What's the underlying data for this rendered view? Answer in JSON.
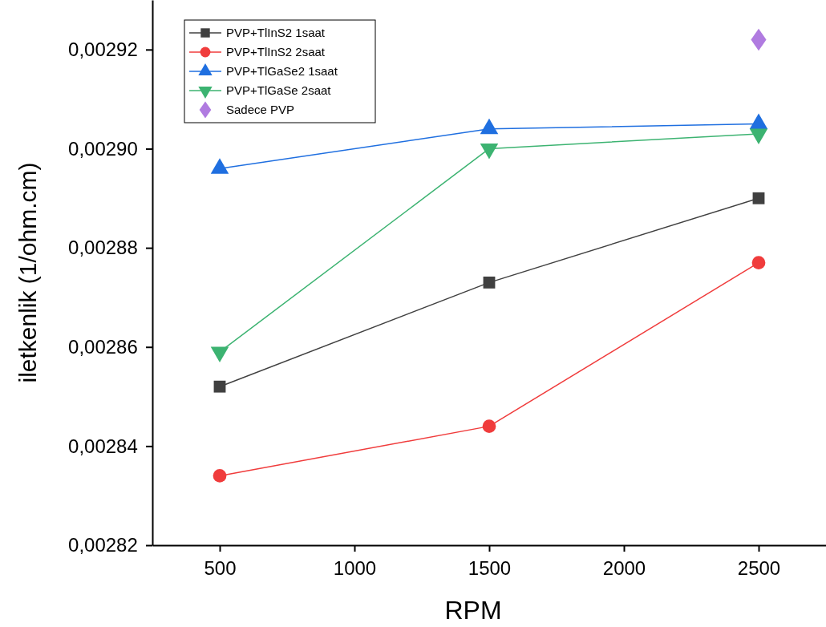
{
  "chart_data": {
    "type": "line",
    "xlabel": "RPM",
    "ylabel": "iletkenlik (1/ohm.cm)",
    "x": [
      500,
      1500,
      2500
    ],
    "xlim": [
      250,
      2750
    ],
    "xticks": [
      500,
      1000,
      1500,
      2000,
      2500
    ],
    "ylim": [
      0.00282,
      0.00293
    ],
    "yticks": [
      {
        "value": 0.00282,
        "label": "0,00282"
      },
      {
        "value": 0.00284,
        "label": "0,00284"
      },
      {
        "value": 0.00286,
        "label": "0,00286"
      },
      {
        "value": 0.00288,
        "label": "0,00288"
      },
      {
        "value": 0.0029,
        "label": "0,00290"
      },
      {
        "value": 0.00292,
        "label": "0,00292"
      }
    ],
    "grid": false,
    "legend": "top left",
    "series": [
      {
        "name": "PVP+TlInS2 1saat",
        "color": "#404040",
        "marker": "square",
        "values": [
          0.002852,
          0.002873,
          0.00289
        ]
      },
      {
        "name": "PVP+TlInS2 2saat",
        "color": "#f03c3c",
        "marker": "circle",
        "values": [
          0.002834,
          0.002844,
          0.002877
        ]
      },
      {
        "name": "PVP+TlGaSe2 1saat",
        "color": "#1f6fe0",
        "marker": "triangle",
        "values": [
          0.002896,
          0.002904,
          0.002905
        ]
      },
      {
        "name": "PVP+TlGaSe 2saat",
        "color": "#3cb371",
        "marker": "triangle-down",
        "values": [
          0.002859,
          0.0029,
          0.002903
        ]
      },
      {
        "name": "Sadece PVP",
        "color": "#b07be0",
        "marker": "diamond",
        "type": "scatter",
        "values": [
          null,
          null,
          0.002922
        ]
      }
    ]
  }
}
